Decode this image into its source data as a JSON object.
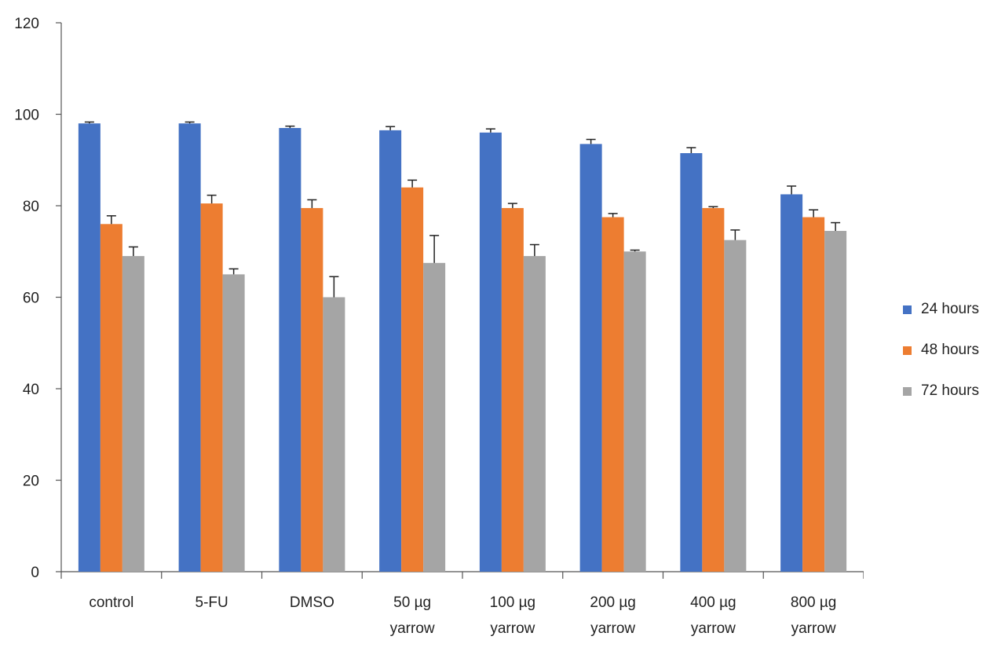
{
  "chart_data": {
    "type": "bar",
    "categories": [
      [
        "control"
      ],
      [
        "5-FU"
      ],
      [
        "DMSO"
      ],
      [
        "50 µg",
        "yarrow"
      ],
      [
        "100 µg",
        "yarrow"
      ],
      [
        "200 µg",
        "yarrow"
      ],
      [
        "400 µg",
        "yarrow"
      ],
      [
        "800 µg",
        "yarrow"
      ]
    ],
    "series": [
      {
        "name": "24 hours",
        "color": "#4472C4",
        "values": [
          98,
          98,
          97,
          96.5,
          96,
          93.5,
          91.5,
          82.5
        ],
        "errors": [
          0.3,
          0.3,
          0.4,
          0.8,
          0.8,
          1.0,
          1.2,
          1.8
        ]
      },
      {
        "name": "48 hours",
        "color": "#ED7D31",
        "values": [
          76,
          80.5,
          79.5,
          84,
          79.5,
          77.5,
          79.5,
          77.5
        ],
        "errors": [
          1.8,
          1.8,
          1.8,
          1.6,
          1.0,
          0.8,
          0.3,
          1.6
        ]
      },
      {
        "name": "72 hours",
        "color": "#A5A5A5",
        "values": [
          69,
          65,
          60,
          67.5,
          69,
          70,
          72.5,
          74.5
        ],
        "errors": [
          2.0,
          1.2,
          4.5,
          6.0,
          2.5,
          0.3,
          2.2,
          1.8
        ]
      }
    ],
    "title": "",
    "xlabel": "",
    "ylabel": "",
    "ylim": [
      0,
      120
    ],
    "yticks": [
      "0",
      "20",
      "40",
      "60",
      "80",
      "100",
      "120"
    ],
    "grid": false,
    "legend_position": "right"
  }
}
